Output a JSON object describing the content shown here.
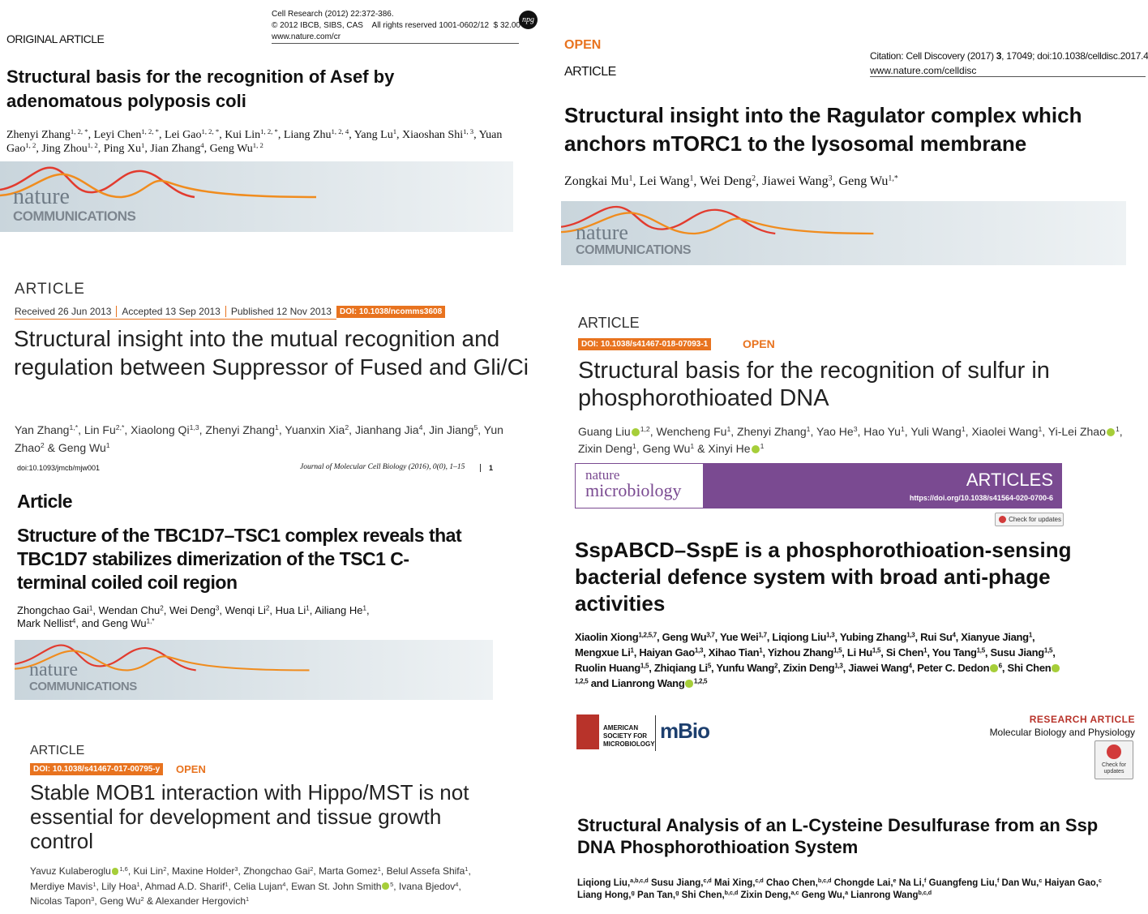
{
  "cell_research": {
    "journal_line": "Cell Research (2012) 22:372-386.",
    "copyright": "© 2012 IBCB, SIBS, CAS    All rights reserved 1001-0602/12  $ 32.00",
    "url": "www.nature.com/cr",
    "logo": "npg",
    "type": "ORIGINAL ARTICLE",
    "title": "Structural basis for the recognition of Asef by adenomatous polyposis coli",
    "authors": [
      {
        "name": "Zhenyi Zhang",
        "sup": "1, 2, *",
        "sep": ", "
      },
      {
        "name": "Leyi Chen",
        "sup": "1, 2, *",
        "sep": ", "
      },
      {
        "name": "Lei Gao",
        "sup": "1, 2, *",
        "sep": ", "
      },
      {
        "name": "Kui Lin",
        "sup": "1, 2, *",
        "sep": ", "
      },
      {
        "name": "Liang Zhu",
        "sup": "1, 2, 4",
        "sep": ", "
      },
      {
        "name": "Yang Lu",
        "sup": "1",
        "sep": ", "
      },
      {
        "name": "Xiaoshan Shi",
        "sup": "1, 3",
        "sep": ", "
      },
      {
        "name": "Yuan Gao",
        "sup": "1, 2",
        "sep": ", "
      },
      {
        "name": "Jing Zhou",
        "sup": "1, 2",
        "sep": ", "
      },
      {
        "name": "Ping Xu",
        "sup": "1",
        "sep": ", "
      },
      {
        "name": "Jian Zhang",
        "sup": "4",
        "sep": ", "
      },
      {
        "name": "Geng Wu",
        "sup": "1, 2"
      }
    ],
    "banner": {
      "top": "nature",
      "bottom": "COMMUNICATIONS"
    }
  },
  "ncomms_2013": {
    "type": "ARTICLE",
    "dates": [
      "Received 26 Jun 2013",
      "Accepted 13 Sep 2013",
      "Published 12 Nov 2013"
    ],
    "doi": "DOI: 10.1038/ncomms3608",
    "title": "Structural insight into the mutual recognition and regulation between Suppressor of Fused and Gli/Ci",
    "authors": [
      {
        "name": "Yan Zhang",
        "sup": "1,*",
        "sep": ", "
      },
      {
        "name": "Lin Fu",
        "sup": "2,*",
        "sep": ", "
      },
      {
        "name": "Xiaolong Qi",
        "sup": "1,3",
        "sep": ", "
      },
      {
        "name": "Zhenyi Zhang",
        "sup": "1",
        "sep": ", "
      },
      {
        "name": "Yuanxin Xia",
        "sup": "2",
        "sep": ", "
      },
      {
        "name": "Jianhang Jia",
        "sup": "4",
        "sep": ", "
      },
      {
        "name": "Jin Jiang",
        "sup": "5",
        "sep": ", "
      },
      {
        "name": "Yun Zhao",
        "sup": "2",
        "sep": " & "
      },
      {
        "name": "Geng Wu",
        "sup": "1"
      }
    ]
  },
  "jmcb_2016": {
    "doi": "doi:10.1093/jmcb/mjw001",
    "journal": "Journal of Molecular Cell Biology (2016), 0(0), 1–15",
    "page": "1",
    "type": "Article",
    "title": "Structure of the TBC1D7–TSC1 complex reveals that TBC1D7 stabilizes dimerization of the TSC1 C-terminal coiled coil region",
    "authors": [
      {
        "name": "Zhongchao Gai",
        "sup": "1",
        "sep": ", "
      },
      {
        "name": "Wendan Chu",
        "sup": "2",
        "sep": ", "
      },
      {
        "name": "Wei Deng",
        "sup": "3",
        "sep": ", "
      },
      {
        "name": "Wenqi Li",
        "sup": "2",
        "sep": ", "
      },
      {
        "name": "Hua Li",
        "sup": "1",
        "sep": ", "
      },
      {
        "name": "Ailiang He",
        "sup": "1",
        "sep": ", "
      },
      {
        "name": "Mark Nellist",
        "sup": "4",
        "sep": ", and "
      },
      {
        "name": "Geng Wu",
        "sup": "1,*"
      }
    ],
    "banner": {
      "top": "nature",
      "bottom": "COMMUNICATIONS"
    }
  },
  "ncomms_2017": {
    "type": "ARTICLE",
    "doi": "DOI: 10.1038/s41467-017-00795-y",
    "open": "OPEN",
    "title": "Stable MOB1 interaction with Hippo/MST is not essential for development and tissue growth control",
    "authors": [
      {
        "name": "Yavuz Kulaberoglu",
        "orcid": true,
        "sup": "1,6",
        "sep": ", "
      },
      {
        "name": "Kui Lin",
        "sup": "2",
        "sep": ", "
      },
      {
        "name": "Maxine Holder",
        "sup": "3",
        "sep": ", "
      },
      {
        "name": "Zhongchao Gai",
        "sup": "2",
        "sep": ", "
      },
      {
        "name": "Marta Gomez",
        "sup": "1",
        "sep": ", "
      },
      {
        "name": "Belul Assefa Shifa",
        "sup": "1",
        "sep": ", "
      },
      {
        "name": "Merdiye Mavis",
        "sup": "1",
        "sep": ", "
      },
      {
        "name": "Lily Hoa",
        "sup": "1",
        "sep": ", "
      },
      {
        "name": "Ahmad A.D. Sharif",
        "sup": "1",
        "sep": ", "
      },
      {
        "name": "Celia Lujan",
        "sup": "4",
        "sep": ", "
      },
      {
        "name": "Ewan St. John Smith",
        "orcid": true,
        "sup": "5",
        "sep": ", "
      },
      {
        "name": "Ivana Bjedov",
        "sup": "4",
        "sep": ", "
      },
      {
        "name": "Nicolas Tapon",
        "sup": "3",
        "sep": ", "
      },
      {
        "name": "Geng Wu",
        "sup": "2",
        "sep": " & "
      },
      {
        "name": "Alexander Hergovich",
        "sup": "1"
      }
    ]
  },
  "cell_discovery": {
    "open": "OPEN",
    "type": "ARTICLE",
    "citation_prefix": "Citation: Cell Discovery (2017) ",
    "volume": "3",
    "citation_suffix": ", 17049; doi:10.1038/celldisc.2017.49",
    "url": "www.nature.com/celldisc",
    "title": "Structural insight into the Ragulator complex which anchors mTORC1 to the lysosomal membrane",
    "authors": [
      {
        "name": "Zongkai Mu",
        "sup": "1",
        "sep": ", "
      },
      {
        "name": "Lei Wang",
        "sup": "1",
        "sep": ", "
      },
      {
        "name": "Wei Deng",
        "sup": "2",
        "sep": ", "
      },
      {
        "name": "Jiawei Wang",
        "sup": "3",
        "sep": ", "
      },
      {
        "name": "Geng Wu",
        "sup": "1,*"
      }
    ],
    "banner": {
      "top": "nature",
      "bottom": "COMMUNICATIONS"
    }
  },
  "ncomms_2018": {
    "type": "ARTICLE",
    "doi": "DOI: 10.1038/s41467-018-07093-1",
    "open": "OPEN",
    "title": "Structural basis for the recognition of sulfur in phosphorothioated DNA",
    "authors": [
      {
        "name": "Guang Liu",
        "orcid": true,
        "sup": "1,2",
        "sep": ", "
      },
      {
        "name": "Wencheng Fu",
        "sup": "1",
        "sep": ", "
      },
      {
        "name": "Zhenyi Zhang",
        "sup": "1",
        "sep": ", "
      },
      {
        "name": "Yao He",
        "sup": "3",
        "sep": ", "
      },
      {
        "name": "Hao Yu",
        "sup": "1",
        "sep": ", "
      },
      {
        "name": "Yuli Wang",
        "sup": "1",
        "sep": ", "
      },
      {
        "name": "Xiaolei Wang",
        "sup": "1",
        "sep": ", "
      },
      {
        "name": "Yi-Lei Zhao",
        "orcid": true,
        "sup": "1",
        "sep": ", "
      },
      {
        "name": "Zixin Deng",
        "sup": "1",
        "sep": ", "
      },
      {
        "name": "Geng Wu",
        "sup": "1",
        "sep": " & "
      },
      {
        "name": "Xinyi He",
        "orcid": true,
        "sup": "1"
      }
    ]
  },
  "nat_micro": {
    "journal_top": "nature",
    "journal_bottom": "microbiology",
    "label": "ARTICLES",
    "url": "https://doi.org/10.1038/s41564-020-0700-6",
    "check": "Check for updates",
    "title": "SspABCD–SspE is a phosphorothioation-sensing bacterial defence system with broad anti-phage activities",
    "authors": [
      {
        "name": "Xiaolin Xiong",
        "sup": "1,2,5,7",
        "sep": ", "
      },
      {
        "name": "Geng Wu",
        "sup": "3,7",
        "sep": ", "
      },
      {
        "name": "Yue Wei",
        "sup": "1,7",
        "sep": ", "
      },
      {
        "name": "Liqiong Liu",
        "sup": "1,3",
        "sep": ", "
      },
      {
        "name": "Yubing Zhang",
        "sup": "1,3",
        "sep": ", "
      },
      {
        "name": "Rui Su",
        "sup": "4",
        "sep": ", "
      },
      {
        "name": "Xianyue Jiang",
        "sup": "1",
        "sep": ", "
      },
      {
        "name": "Mengxue Li",
        "sup": "1",
        "sep": ", "
      },
      {
        "name": "Haiyan Gao",
        "sup": "1,3",
        "sep": ", "
      },
      {
        "name": "Xihao Tian",
        "sup": "1",
        "sep": ", "
      },
      {
        "name": "Yizhou Zhang",
        "sup": "1,5",
        "sep": ", "
      },
      {
        "name": "Li Hu",
        "sup": "1,5",
        "sep": ", "
      },
      {
        "name": "Si Chen",
        "sup": "1",
        "sep": ", "
      },
      {
        "name": "You Tang",
        "sup": "1,5",
        "sep": ", "
      },
      {
        "name": "Susu Jiang",
        "sup": "1,5",
        "sep": ", "
      },
      {
        "name": "Ruolin Huang",
        "sup": "1,5",
        "sep": ", "
      },
      {
        "name": "Zhiqiang Li",
        "sup": "5",
        "sep": ", "
      },
      {
        "name": "Yunfu Wang",
        "sup": "2",
        "sep": ", "
      },
      {
        "name": "Zixin Deng",
        "sup": "1,3",
        "sep": ", "
      },
      {
        "name": "Jiawei Wang",
        "sup": "4",
        "sep": ", "
      },
      {
        "name": "Peter C. Dedon",
        "orcid": true,
        "sup": "6",
        "sep": ", "
      },
      {
        "name": "Shi Chen",
        "orcid": true,
        "sup": "1,2,5",
        "sep": " and "
      },
      {
        "name": "Lianrong Wang",
        "orcid": true,
        "sup": "1,2,5"
      }
    ]
  },
  "mbio": {
    "society": "AMERICAN SOCIETY FOR MICROBIOLOGY",
    "journal": "mBio",
    "section": "RESEARCH ARTICLE",
    "subsection": "Molecular Biology and Physiology",
    "check": "Check for updates",
    "title": "Structural Analysis of an L-Cysteine Desulfurase from an Ssp DNA Phosphorothioation System",
    "authors": [
      {
        "name": "Liqiong Liu,",
        "sup": "a,b,c,d",
        "sep": " "
      },
      {
        "name": "Susu Jiang,",
        "sup": "c,d",
        "sep": " "
      },
      {
        "name": "Mai Xing,",
        "sup": "c,d",
        "sep": " "
      },
      {
        "name": "Chao Chen,",
        "sup": "b,c,d",
        "sep": " "
      },
      {
        "name": "Chongde Lai,",
        "sup": "e",
        "sep": " "
      },
      {
        "name": "Na Li,",
        "sup": "f",
        "sep": " "
      },
      {
        "name": "Guangfeng Liu,",
        "sup": "f",
        "sep": " "
      },
      {
        "name": "Dan Wu,",
        "sup": "c",
        "sep": " "
      },
      {
        "name": "Haiyan Gao,",
        "sup": "c",
        "sep": " "
      },
      {
        "name": "Liang Hong,",
        "sup": "g",
        "sep": " "
      },
      {
        "name": "Pan Tan,",
        "sup": "g",
        "sep": " "
      },
      {
        "name": "Shi Chen,",
        "sup": "b,c,d",
        "sep": " "
      },
      {
        "name": "Zixin Deng,",
        "sup": "a,c",
        "sep": " "
      },
      {
        "name": "Geng Wu,",
        "sup": "a",
        "sep": " "
      },
      {
        "name": "Lianrong Wang",
        "sup": "b,c,d"
      }
    ]
  }
}
